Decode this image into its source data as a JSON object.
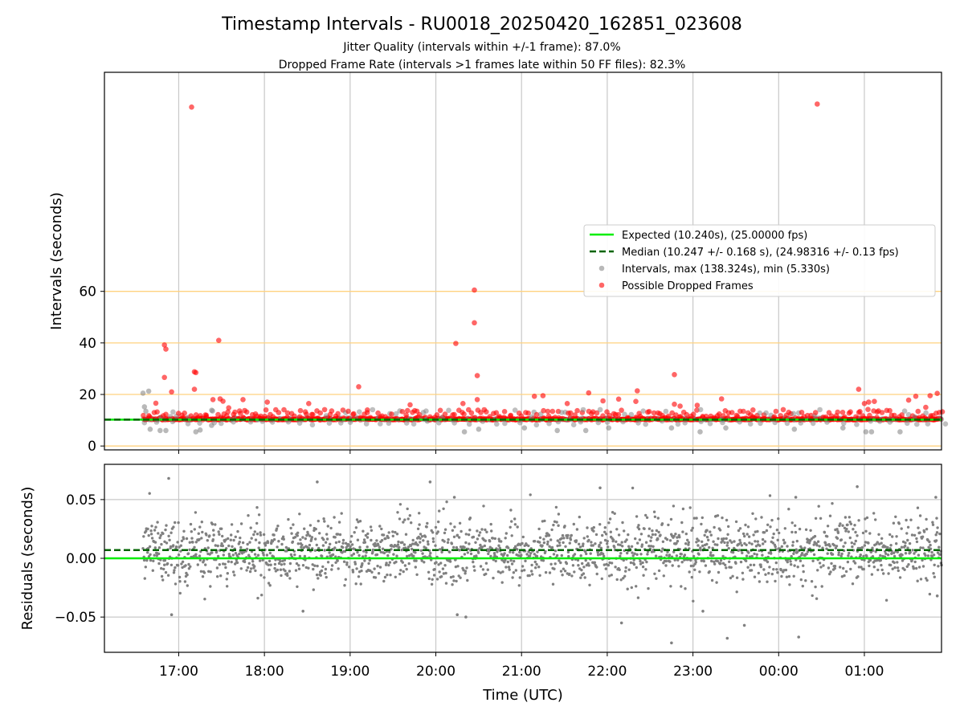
{
  "title": "Timestamp Intervals - RU0018_20250420_162851_023608",
  "subtitle_jitter": "Jitter Quality (intervals within +/-1 frame): 87.0%",
  "subtitle_dropped": "Dropped Frame Rate (intervals >1 frames late within 50 FF files): 82.3%",
  "colors": {
    "expected": "#00ee00",
    "median": "#006400",
    "intervals": "#808080",
    "dropped": "#ff0000",
    "threshold": "#ffd27f",
    "grid": "#c8c8c8"
  },
  "chart_data": [
    {
      "type": "scatter",
      "panel": "intervals",
      "ylabel": "Intervals (seconds)",
      "xlim": [
        "16:08",
        "25:54"
      ],
      "x_ticks": [
        "17:00",
        "18:00",
        "19:00",
        "20:00",
        "21:00",
        "22:00",
        "23:00",
        "00:00",
        "01:00"
      ],
      "ylim": [
        -1.5,
        145
      ],
      "y_ticks": [
        0,
        20,
        40,
        60
      ],
      "threshold_lines": [
        0,
        20,
        40,
        60
      ],
      "x_grid": true,
      "legend_position": "center-right",
      "legend": [
        {
          "label": "Expected (10.240s), (25.00000 fps)",
          "kind": "solid-line"
        },
        {
          "label": "Median (10.247 +/- 0.168 s), (24.98316 +/- 0.13 fps)",
          "kind": "dashed-line"
        },
        {
          "label": "Intervals, max (138.324s), min (5.330s)",
          "kind": "gray-dot"
        },
        {
          "label": "Possible Dropped Frames",
          "kind": "red-dot"
        }
      ],
      "expected": 10.24,
      "median": 10.247,
      "series_span": [
        "16:35",
        "25:54"
      ],
      "dropped_frames": [
        [
          "16:50",
          39.2
        ],
        [
          "16:51",
          37.6
        ],
        [
          "16:50",
          26.6
        ],
        [
          "16:44",
          16.6
        ],
        [
          "16:55",
          21.0
        ],
        [
          "17:09",
          131.5
        ],
        [
          "17:11",
          22.0
        ],
        [
          "17:11",
          28.8
        ],
        [
          "17:12",
          28.5
        ],
        [
          "17:28",
          41.0
        ],
        [
          "17:29",
          18.3
        ],
        [
          "17:31",
          17.4
        ],
        [
          "17:24",
          18.0
        ],
        [
          "17:35",
          14.8
        ],
        [
          "17:45",
          18.0
        ],
        [
          "18:02",
          17.0
        ],
        [
          "18:31",
          16.5
        ],
        [
          "19:06",
          23.0
        ],
        [
          "19:12",
          13.0
        ],
        [
          "19:42",
          16.0
        ],
        [
          "20:14",
          39.8
        ],
        [
          "20:27",
          60.5
        ],
        [
          "20:27",
          47.8
        ],
        [
          "20:29",
          27.3
        ],
        [
          "20:29",
          18.0
        ],
        [
          "20:19",
          16.5
        ],
        [
          "21:09",
          19.3
        ],
        [
          "21:15",
          19.5
        ],
        [
          "21:32",
          16.5
        ],
        [
          "21:47",
          20.6
        ],
        [
          "21:57",
          17.5
        ],
        [
          "22:08",
          18.2
        ],
        [
          "22:20",
          17.3
        ],
        [
          "22:21",
          21.4
        ],
        [
          "22:47",
          27.7
        ],
        [
          "22:47",
          16.2
        ],
        [
          "22:51",
          15.5
        ],
        [
          "23:03",
          15.8
        ],
        [
          "23:20",
          18.3
        ],
        [
          "23:42",
          14.0
        ],
        [
          "24:27",
          132.7
        ],
        [
          "24:56",
          22.0
        ],
        [
          "25:00",
          16.5
        ],
        [
          "25:03",
          17.0
        ],
        [
          "25:07",
          17.3
        ],
        [
          "25:36",
          19.3
        ],
        [
          "25:43",
          15.0
        ],
        [
          "25:46",
          19.5
        ],
        [
          "25:51",
          20.4
        ],
        [
          "25:31",
          17.8
        ]
      ],
      "gray_outliers": [
        [
          "16:35",
          20.5
        ],
        [
          "16:39",
          21.3
        ],
        [
          "16:36",
          15.2
        ],
        [
          "16:37",
          13.5
        ],
        [
          "16:40",
          6.5
        ],
        [
          "16:47",
          6.0
        ],
        [
          "16:51",
          6.0
        ],
        [
          "17:12",
          5.5
        ],
        [
          "17:15",
          6.2
        ],
        [
          "17:23",
          8.0
        ],
        [
          "20:20",
          5.5
        ],
        [
          "20:30",
          6.5
        ],
        [
          "21:02",
          7.0
        ],
        [
          "21:25",
          6.0
        ],
        [
          "21:45",
          6.0
        ],
        [
          "22:01",
          7.0
        ],
        [
          "22:45",
          7.0
        ],
        [
          "23:05",
          5.5
        ],
        [
          "23:23",
          7.0
        ],
        [
          "24:11",
          6.5
        ],
        [
          "24:45",
          7.0
        ],
        [
          "25:01",
          5.5
        ],
        [
          "25:05",
          5.5
        ],
        [
          "25:25",
          5.5
        ]
      ]
    },
    {
      "type": "scatter",
      "panel": "residuals",
      "ylabel": "Residuals (seconds)",
      "xlabel": "Time (UTC)",
      "xlim": [
        "16:08",
        "25:54"
      ],
      "x_ticks": [
        "17:00",
        "18:00",
        "19:00",
        "20:00",
        "21:00",
        "22:00",
        "23:00",
        "00:00",
        "01:00"
      ],
      "ylim": [
        -0.08,
        0.08
      ],
      "y_ticks": [
        "0.05",
        "0.00",
        "−0.05"
      ],
      "y_tick_values": [
        0.05,
        0,
        -0.05
      ],
      "expected_residual": 0,
      "median_residual": 0.007,
      "grid": true,
      "noise_std": 0.014,
      "outliers": [
        [
          "16:53",
          0.068
        ],
        [
          "18:37",
          0.065
        ],
        [
          "19:56",
          0.065
        ],
        [
          "21:55",
          0.06
        ],
        [
          "22:45",
          -0.072
        ],
        [
          "23:07",
          -0.045
        ],
        [
          "23:24",
          -0.068
        ],
        [
          "23:36",
          -0.057
        ],
        [
          "24:14",
          -0.067
        ],
        [
          "24:12",
          0.052
        ],
        [
          "24:55",
          0.061
        ],
        [
          "20:15",
          -0.048
        ],
        [
          "20:21",
          -0.05
        ],
        [
          "20:13",
          0.052
        ],
        [
          "22:10",
          -0.055
        ],
        [
          "16:55",
          -0.048
        ],
        [
          "18:27",
          -0.045
        ],
        [
          "25:50",
          0.052
        ],
        [
          "25:51",
          -0.032
        ]
      ]
    }
  ]
}
